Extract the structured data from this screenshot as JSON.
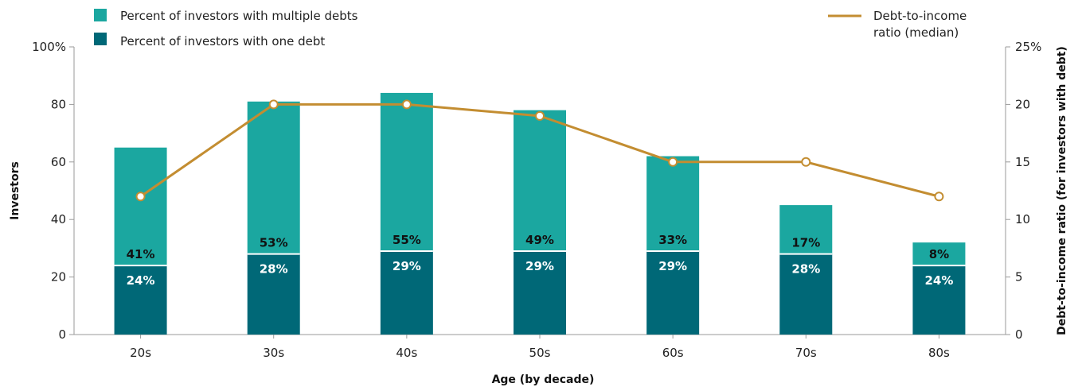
{
  "chart_data": {
    "type": "bar",
    "categories": [
      "20s",
      "30s",
      "40s",
      "50s",
      "60s",
      "70s",
      "80s"
    ],
    "series": [
      {
        "name": "Percent of investors with one debt",
        "role": "bar-bottom",
        "color": "#006877",
        "values": [
          24,
          28,
          29,
          29,
          29,
          28,
          24
        ],
        "labels": [
          "24%",
          "28%",
          "29%",
          "29%",
          "29%",
          "28%",
          "24%"
        ],
        "label_color": "#ffffff"
      },
      {
        "name": "Percent of investors with multiple debts",
        "role": "bar-top",
        "color": "#1ba7a0",
        "values": [
          41,
          53,
          55,
          49,
          33,
          17,
          8
        ],
        "labels": [
          "41%",
          "53%",
          "55%",
          "49%",
          "33%",
          "17%",
          "8%"
        ],
        "label_color": "#111111"
      },
      {
        "name": "Debt-to-income ratio (median)",
        "role": "line",
        "axis": "right",
        "color": "#c38d31",
        "values": [
          12,
          20,
          20,
          19,
          15,
          15,
          12
        ]
      }
    ],
    "xlabel": "Age (by decade)",
    "ylabel": "Investors",
    "ylabel_right": "Debt-to-income ratio (for investors with debt)",
    "ylim": [
      0,
      100
    ],
    "ylim_right": [
      0,
      25
    ],
    "yticks": [
      "0",
      "20",
      "40",
      "60",
      "80",
      "100%"
    ],
    "yticks_right": [
      "0",
      "5",
      "10",
      "15",
      "20",
      "25%"
    ],
    "legend": {
      "bars": [
        "Percent of investors with multiple debts",
        "Percent of investors with one debt"
      ],
      "line_lines": [
        "Debt-to-income",
        "ratio (median)"
      ]
    },
    "grid": false
  }
}
